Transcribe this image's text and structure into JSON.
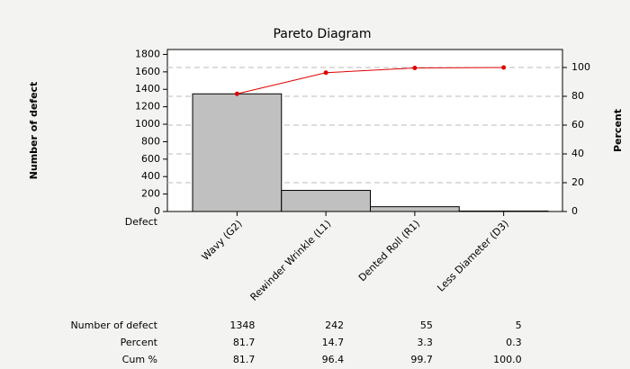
{
  "chart_data": {
    "type": "pareto",
    "title": "Pareto Diagram",
    "xlabel": "Defect",
    "ylabel": "Number of defect",
    "y2label": "Percent",
    "categories": [
      "Wavy (G2)",
      "Rewinder Wrinkle (L1)",
      "Dented Roll (R1)",
      "Less Diameter (D3)"
    ],
    "series": [
      {
        "name": "Number of defect",
        "color": "#c0c0c0",
        "values": [
          1348,
          242,
          55,
          5
        ]
      },
      {
        "name": "Cum %",
        "color": "#e00000",
        "axis": "y2",
        "values": [
          81.7,
          96.4,
          99.7,
          100
        ],
        "value_labels": [
          "81.7",
          "96.4",
          "99.7",
          "100.0"
        ]
      }
    ],
    "percent": {
      "name": "Percent",
      "values": [
        81.7,
        14.7,
        3.3,
        0.3
      ]
    },
    "ylim": [
      0,
      1856.25
    ],
    "yticks": [
      0,
      200,
      400,
      600,
      800,
      1000,
      1200,
      1400,
      1600,
      1800
    ],
    "y2lim": [
      0,
      112.5
    ],
    "y2ticks": [
      0,
      20,
      40,
      60,
      80,
      100
    ],
    "grid": true
  }
}
